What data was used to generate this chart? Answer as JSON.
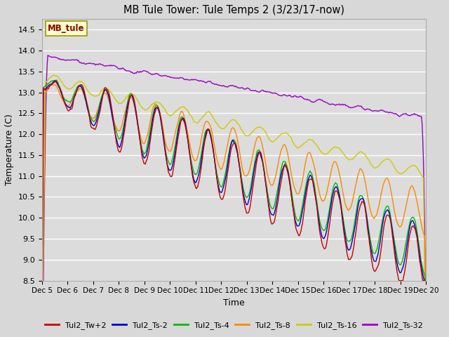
{
  "title": "MB Tule Tower: Tule Temps 2 (3/23/17-now)",
  "xlabel": "Time",
  "ylabel": "Temperature (C)",
  "ylim": [
    8.5,
    14.75
  ],
  "xlim": [
    0,
    15
  ],
  "x_tick_labels": [
    "Dec 5",
    "Dec 6",
    "Dec 7",
    "Dec 8",
    "Dec 9",
    "Dec 10",
    "Dec 11",
    "Dec 12",
    "Dec 13",
    "Dec 14",
    "Dec 15",
    "Dec 16",
    "Dec 17",
    "Dec 18",
    "Dec 19",
    "Dec 20"
  ],
  "fig_bg_color": "#d8d8d8",
  "plot_bg_color": "#dcdcdc",
  "legend_label": "MB_tule",
  "series_colors": {
    "Tul2_Tw+2": "#cc0000",
    "Tul2_Ts-2": "#0000cc",
    "Tul2_Ts-4": "#00bb00",
    "Tul2_Ts-8": "#ff8800",
    "Tul2_Ts-16": "#cccc00",
    "Tul2_Ts-32": "#9900cc"
  },
  "line_width": 1.0
}
